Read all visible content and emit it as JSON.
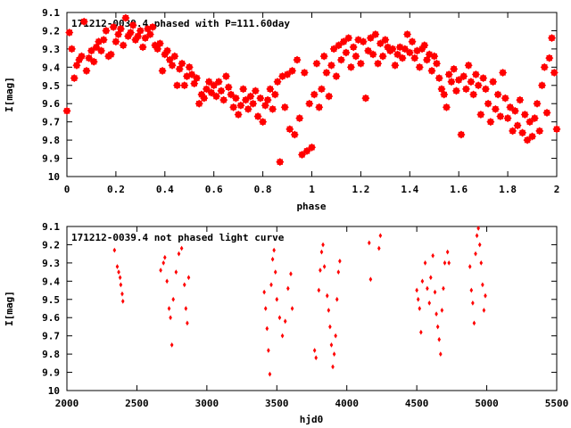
{
  "chart_data": [
    {
      "type": "scatter",
      "title": "171212-0039.4 phased with P=111.60day",
      "xlabel": "phase",
      "ylabel": "I[mag]",
      "xlim": [
        0,
        2
      ],
      "ylim": [
        10,
        9.1
      ],
      "y_inverted": true,
      "xticks": [
        0,
        0.2,
        0.4,
        0.6,
        0.8,
        1,
        1.2,
        1.4,
        1.6,
        1.8,
        2
      ],
      "xtick_labels": [
        "0",
        "0.2",
        "0.4",
        "0.6",
        "0.8",
        "1",
        "1.2",
        "1.4",
        "1.6",
        "1.8",
        "2"
      ],
      "yticks": [
        9.1,
        9.2,
        9.3,
        9.4,
        9.5,
        9.6,
        9.7,
        9.8,
        9.9,
        10
      ],
      "ytick_labels": [
        "9.1",
        "9.2",
        "9.3",
        "9.4",
        "9.5",
        "9.6",
        "9.7",
        "9.8",
        "9.9",
        "10"
      ],
      "grid": false,
      "marker_color": "#ff0000",
      "points": [
        [
          0.0,
          9.64
        ],
        [
          0.01,
          9.21
        ],
        [
          0.02,
          9.3
        ],
        [
          0.03,
          9.46
        ],
        [
          0.04,
          9.39
        ],
        [
          0.05,
          9.36
        ],
        [
          0.06,
          9.34
        ],
        [
          0.07,
          9.15
        ],
        [
          0.08,
          9.42
        ],
        [
          0.09,
          9.35
        ],
        [
          0.1,
          9.31
        ],
        [
          0.11,
          9.37
        ],
        [
          0.12,
          9.29
        ],
        [
          0.13,
          9.26
        ],
        [
          0.14,
          9.31
        ],
        [
          0.15,
          9.25
        ],
        [
          0.16,
          9.2
        ],
        [
          0.17,
          9.34
        ],
        [
          0.18,
          9.33
        ],
        [
          0.19,
          9.18
        ],
        [
          0.2,
          9.26
        ],
        [
          0.21,
          9.22
        ],
        [
          0.22,
          9.19
        ],
        [
          0.23,
          9.28
        ],
        [
          0.24,
          9.13
        ],
        [
          0.25,
          9.23
        ],
        [
          0.26,
          9.21
        ],
        [
          0.27,
          9.17
        ],
        [
          0.28,
          9.25
        ],
        [
          0.29,
          9.23
        ],
        [
          0.3,
          9.2
        ],
        [
          0.31,
          9.29
        ],
        [
          0.32,
          9.24
        ],
        [
          0.33,
          9.19
        ],
        [
          0.34,
          9.22
        ],
        [
          0.35,
          9.18
        ],
        [
          0.36,
          9.28
        ],
        [
          0.37,
          9.3
        ],
        [
          0.38,
          9.27
        ],
        [
          0.39,
          9.42
        ],
        [
          0.4,
          9.33
        ],
        [
          0.41,
          9.31
        ],
        [
          0.42,
          9.36
        ],
        [
          0.43,
          9.39
        ],
        [
          0.44,
          9.34
        ],
        [
          0.45,
          9.5
        ],
        [
          0.46,
          9.41
        ],
        [
          0.47,
          9.38
        ],
        [
          0.48,
          9.5
        ],
        [
          0.49,
          9.45
        ],
        [
          0.5,
          9.4
        ],
        [
          0.51,
          9.44
        ],
        [
          0.52,
          9.49
        ],
        [
          0.53,
          9.46
        ],
        [
          0.54,
          9.6
        ],
        [
          0.55,
          9.55
        ],
        [
          0.56,
          9.57
        ],
        [
          0.57,
          9.52
        ],
        [
          0.58,
          9.48
        ],
        [
          0.59,
          9.54
        ],
        [
          0.6,
          9.5
        ],
        [
          0.61,
          9.56
        ],
        [
          0.62,
          9.48
        ],
        [
          0.63,
          9.53
        ],
        [
          0.64,
          9.58
        ],
        [
          0.65,
          9.45
        ],
        [
          0.66,
          9.51
        ],
        [
          0.67,
          9.55
        ],
        [
          0.68,
          9.62
        ],
        [
          0.69,
          9.57
        ],
        [
          0.7,
          9.66
        ],
        [
          0.71,
          9.61
        ],
        [
          0.72,
          9.52
        ],
        [
          0.73,
          9.58
        ],
        [
          0.74,
          9.63
        ],
        [
          0.75,
          9.56
        ],
        [
          0.76,
          9.6
        ],
        [
          0.77,
          9.53
        ],
        [
          0.78,
          9.67
        ],
        [
          0.79,
          9.57
        ],
        [
          0.8,
          9.7
        ],
        [
          0.81,
          9.61
        ],
        [
          0.82,
          9.58
        ],
        [
          0.83,
          9.52
        ],
        [
          0.84,
          9.63
        ],
        [
          0.85,
          9.55
        ],
        [
          0.86,
          9.48
        ],
        [
          0.87,
          9.92
        ],
        [
          0.88,
          9.45
        ],
        [
          0.89,
          9.62
        ],
        [
          0.9,
          9.44
        ],
        [
          0.91,
          9.74
        ],
        [
          0.92,
          9.42
        ],
        [
          0.93,
          9.77
        ],
        [
          0.94,
          9.36
        ],
        [
          0.95,
          9.68
        ],
        [
          0.96,
          9.88
        ],
        [
          0.97,
          9.43
        ],
        [
          0.98,
          9.86
        ],
        [
          0.99,
          9.6
        ],
        [
          1.0,
          9.84
        ],
        [
          1.01,
          9.55
        ],
        [
          1.02,
          9.38
        ],
        [
          1.03,
          9.62
        ],
        [
          1.04,
          9.52
        ],
        [
          1.05,
          9.34
        ],
        [
          1.06,
          9.43
        ],
        [
          1.07,
          9.56
        ],
        [
          1.08,
          9.39
        ],
        [
          1.09,
          9.3
        ],
        [
          1.1,
          9.45
        ],
        [
          1.11,
          9.28
        ],
        [
          1.12,
          9.36
        ],
        [
          1.13,
          9.26
        ],
        [
          1.14,
          9.32
        ],
        [
          1.15,
          9.24
        ],
        [
          1.16,
          9.4
        ],
        [
          1.17,
          9.29
        ],
        [
          1.18,
          9.34
        ],
        [
          1.19,
          9.25
        ],
        [
          1.2,
          9.38
        ],
        [
          1.21,
          9.26
        ],
        [
          1.22,
          9.57
        ],
        [
          1.23,
          9.31
        ],
        [
          1.24,
          9.24
        ],
        [
          1.25,
          9.33
        ],
        [
          1.26,
          9.22
        ],
        [
          1.27,
          9.38
        ],
        [
          1.28,
          9.27
        ],
        [
          1.29,
          9.34
        ],
        [
          1.3,
          9.25
        ],
        [
          1.31,
          9.29
        ],
        [
          1.32,
          9.31
        ],
        [
          1.33,
          9.3
        ],
        [
          1.34,
          9.39
        ],
        [
          1.35,
          9.33
        ],
        [
          1.36,
          9.29
        ],
        [
          1.37,
          9.35
        ],
        [
          1.38,
          9.3
        ],
        [
          1.39,
          9.22
        ],
        [
          1.4,
          9.32
        ],
        [
          1.41,
          9.26
        ],
        [
          1.42,
          9.35
        ],
        [
          1.43,
          9.31
        ],
        [
          1.44,
          9.4
        ],
        [
          1.45,
          9.3
        ],
        [
          1.46,
          9.28
        ],
        [
          1.47,
          9.36
        ],
        [
          1.48,
          9.33
        ],
        [
          1.49,
          9.42
        ],
        [
          1.5,
          9.34
        ],
        [
          1.51,
          9.38
        ],
        [
          1.52,
          9.46
        ],
        [
          1.53,
          9.52
        ],
        [
          1.54,
          9.55
        ],
        [
          1.55,
          9.62
        ],
        [
          1.56,
          9.44
        ],
        [
          1.57,
          9.48
        ],
        [
          1.58,
          9.41
        ],
        [
          1.59,
          9.53
        ],
        [
          1.6,
          9.47
        ],
        [
          1.61,
          9.77
        ],
        [
          1.62,
          9.45
        ],
        [
          1.63,
          9.52
        ],
        [
          1.64,
          9.39
        ],
        [
          1.65,
          9.48
        ],
        [
          1.66,
          9.55
        ],
        [
          1.67,
          9.44
        ],
        [
          1.68,
          9.5
        ],
        [
          1.69,
          9.66
        ],
        [
          1.7,
          9.46
        ],
        [
          1.71,
          9.52
        ],
        [
          1.72,
          9.6
        ],
        [
          1.73,
          9.7
        ],
        [
          1.74,
          9.48
        ],
        [
          1.75,
          9.63
        ],
        [
          1.76,
          9.55
        ],
        [
          1.77,
          9.67
        ],
        [
          1.78,
          9.43
        ],
        [
          1.79,
          9.57
        ],
        [
          1.8,
          9.68
        ],
        [
          1.81,
          9.62
        ],
        [
          1.82,
          9.75
        ],
        [
          1.83,
          9.64
        ],
        [
          1.84,
          9.72
        ],
        [
          1.85,
          9.58
        ],
        [
          1.86,
          9.76
        ],
        [
          1.87,
          9.66
        ],
        [
          1.88,
          9.8
        ],
        [
          1.89,
          9.7
        ],
        [
          1.9,
          9.78
        ],
        [
          1.91,
          9.68
        ],
        [
          1.92,
          9.6
        ],
        [
          1.93,
          9.75
        ],
        [
          1.94,
          9.5
        ],
        [
          1.95,
          9.4
        ],
        [
          1.96,
          9.65
        ],
        [
          1.97,
          9.35
        ],
        [
          1.98,
          9.24
        ],
        [
          1.99,
          9.43
        ],
        [
          2.0,
          9.74
        ]
      ]
    },
    {
      "type": "scatter",
      "title": "171212-0039.4 not phased light curve",
      "xlabel": "hjd0",
      "ylabel": "I[mag]",
      "xlim": [
        2000,
        5500
      ],
      "ylim": [
        10,
        9.1
      ],
      "y_inverted": true,
      "xticks": [
        2000,
        2500,
        3000,
        3500,
        4000,
        4500,
        5000,
        5500
      ],
      "xtick_labels": [
        "2000",
        "2500",
        "3000",
        "3500",
        "4000",
        "4500",
        "5000",
        "5500"
      ],
      "yticks": [
        9.1,
        9.2,
        9.3,
        9.4,
        9.5,
        9.6,
        9.7,
        9.8,
        9.9,
        10
      ],
      "ytick_labels": [
        "9.1",
        "9.2",
        "9.3",
        "9.4",
        "9.5",
        "9.6",
        "9.7",
        "9.8",
        "9.9",
        "10"
      ],
      "grid": false,
      "marker_color": "#ff0000",
      "points": [
        [
          2340,
          9.23
        ],
        [
          2360,
          9.32
        ],
        [
          2370,
          9.35
        ],
        [
          2380,
          9.38
        ],
        [
          2385,
          9.42
        ],
        [
          2395,
          9.47
        ],
        [
          2400,
          9.51
        ],
        [
          2670,
          9.34
        ],
        [
          2690,
          9.3
        ],
        [
          2700,
          9.27
        ],
        [
          2715,
          9.4
        ],
        [
          2730,
          9.55
        ],
        [
          2740,
          9.6
        ],
        [
          2750,
          9.75
        ],
        [
          2760,
          9.5
        ],
        [
          2780,
          9.35
        ],
        [
          2800,
          9.25
        ],
        [
          2820,
          9.22
        ],
        [
          2840,
          9.42
        ],
        [
          2850,
          9.55
        ],
        [
          2860,
          9.63
        ],
        [
          2870,
          9.38
        ],
        [
          3410,
          9.46
        ],
        [
          3420,
          9.55
        ],
        [
          3430,
          9.66
        ],
        [
          3440,
          9.78
        ],
        [
          3450,
          9.91
        ],
        [
          3460,
          9.42
        ],
        [
          3470,
          9.28
        ],
        [
          3480,
          9.23
        ],
        [
          3490,
          9.35
        ],
        [
          3500,
          9.5
        ],
        [
          3520,
          9.6
        ],
        [
          3540,
          9.7
        ],
        [
          3560,
          9.62
        ],
        [
          3580,
          9.44
        ],
        [
          3600,
          9.36
        ],
        [
          3610,
          9.55
        ],
        [
          3770,
          9.78
        ],
        [
          3780,
          9.82
        ],
        [
          3800,
          9.45
        ],
        [
          3810,
          9.34
        ],
        [
          3820,
          9.24
        ],
        [
          3830,
          9.2
        ],
        [
          3840,
          9.32
        ],
        [
          3860,
          9.48
        ],
        [
          3870,
          9.56
        ],
        [
          3880,
          9.65
        ],
        [
          3890,
          9.75
        ],
        [
          3900,
          9.87
        ],
        [
          3910,
          9.8
        ],
        [
          3920,
          9.7
        ],
        [
          3930,
          9.5
        ],
        [
          3940,
          9.35
        ],
        [
          3950,
          9.29
        ],
        [
          4160,
          9.19
        ],
        [
          4170,
          9.39
        ],
        [
          4230,
          9.22
        ],
        [
          4240,
          9.15
        ],
        [
          4500,
          9.45
        ],
        [
          4510,
          9.5
        ],
        [
          4520,
          9.55
        ],
        [
          4530,
          9.68
        ],
        [
          4540,
          9.4
        ],
        [
          4560,
          9.3
        ],
        [
          4575,
          9.44
        ],
        [
          4590,
          9.52
        ],
        [
          4600,
          9.38
        ],
        [
          4615,
          9.26
        ],
        [
          4630,
          9.46
        ],
        [
          4640,
          9.58
        ],
        [
          4650,
          9.65
        ],
        [
          4660,
          9.72
        ],
        [
          4670,
          9.8
        ],
        [
          4680,
          9.56
        ],
        [
          4690,
          9.44
        ],
        [
          4700,
          9.3
        ],
        [
          4720,
          9.24
        ],
        [
          4730,
          9.3
        ],
        [
          4880,
          9.32
        ],
        [
          4890,
          9.45
        ],
        [
          4900,
          9.52
        ],
        [
          4910,
          9.63
        ],
        [
          4920,
          9.25
        ],
        [
          4930,
          9.15
        ],
        [
          4940,
          9.11
        ],
        [
          4950,
          9.2
        ],
        [
          4960,
          9.3
        ],
        [
          4970,
          9.42
        ],
        [
          4980,
          9.56
        ],
        [
          4990,
          9.48
        ]
      ]
    }
  ]
}
